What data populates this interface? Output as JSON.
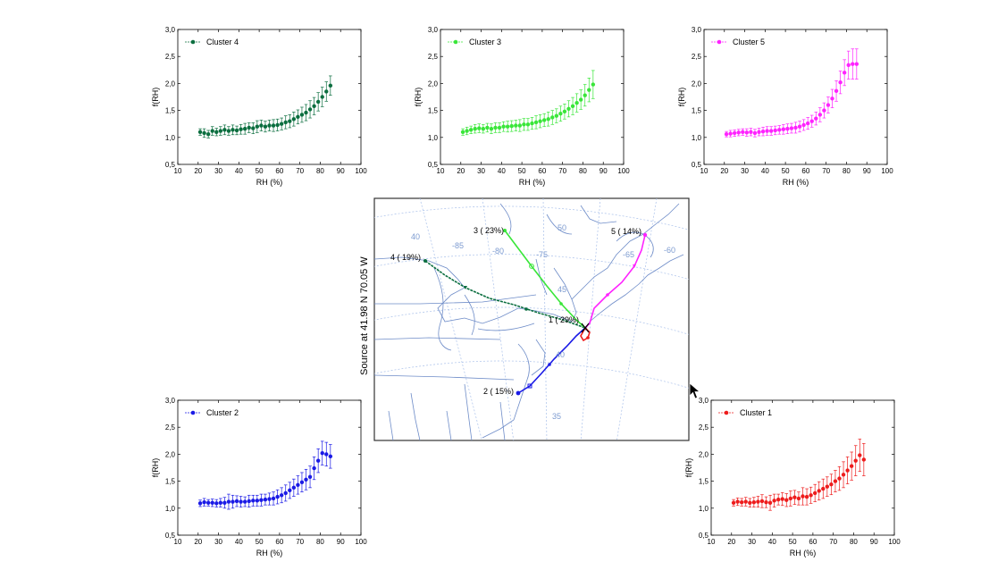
{
  "colors": {
    "cluster4": "#0b6e3f",
    "cluster3": "#39e639",
    "cluster5": "#ff22ff",
    "cluster2": "#1a1ae6",
    "cluster1": "#ee1c1c",
    "map_boundary": "#6e8cc8",
    "map_grid": "#a9c0ea",
    "cursor": "#000000"
  },
  "icons": {
    "cursor": "arrow-cursor-icon"
  },
  "axis_common": {
    "xlabel": "RH (%)",
    "ylabel": "f(RH)",
    "xlim": [
      10,
      100
    ],
    "ylim": [
      0.5,
      3.0
    ],
    "xticks": [
      "10",
      "20",
      "30",
      "40",
      "50",
      "60",
      "70",
      "80",
      "90",
      "100"
    ],
    "yticks": [
      "0,5",
      "1,0",
      "1,5",
      "2,0",
      "2,5",
      "3,0"
    ]
  },
  "chart_data": [
    {
      "type": "scatter",
      "legend": "Cluster 4",
      "color_key": "cluster4",
      "panel": "top-left",
      "xlabel": "RH (%)",
      "ylabel": "f(RH)",
      "xlim": [
        10,
        100
      ],
      "ylim": [
        0.5,
        3.0
      ],
      "x": [
        21,
        23,
        25,
        27,
        29,
        31,
        33,
        35,
        37,
        39,
        41,
        43,
        45,
        47,
        49,
        51,
        53,
        55,
        57,
        59,
        61,
        63,
        65,
        67,
        69,
        71,
        73,
        75,
        77,
        79,
        81,
        83,
        85
      ],
      "y": [
        1.1,
        1.08,
        1.06,
        1.12,
        1.1,
        1.12,
        1.14,
        1.12,
        1.14,
        1.13,
        1.15,
        1.16,
        1.18,
        1.17,
        1.2,
        1.22,
        1.2,
        1.22,
        1.22,
        1.23,
        1.25,
        1.28,
        1.3,
        1.34,
        1.38,
        1.42,
        1.46,
        1.52,
        1.58,
        1.66,
        1.75,
        1.85,
        1.96
      ],
      "err": [
        0.06,
        0.08,
        0.07,
        0.08,
        0.07,
        0.08,
        0.09,
        0.08,
        0.09,
        0.08,
        0.09,
        0.1,
        0.09,
        0.1,
        0.11,
        0.1,
        0.1,
        0.1,
        0.11,
        0.11,
        0.11,
        0.12,
        0.12,
        0.13,
        0.13,
        0.14,
        0.15,
        0.16,
        0.16,
        0.17,
        0.18,
        0.18,
        0.18
      ]
    },
    {
      "type": "scatter",
      "legend": "Cluster 3",
      "color_key": "cluster3",
      "panel": "top-center",
      "xlabel": "RH (%)",
      "ylabel": "f(RH)",
      "xlim": [
        10,
        100
      ],
      "ylim": [
        0.5,
        3.0
      ],
      "x": [
        21,
        23,
        25,
        27,
        29,
        31,
        33,
        35,
        37,
        39,
        41,
        43,
        45,
        47,
        49,
        51,
        53,
        55,
        57,
        59,
        61,
        63,
        65,
        67,
        69,
        71,
        73,
        75,
        77,
        79,
        81,
        83,
        85
      ],
      "y": [
        1.1,
        1.12,
        1.14,
        1.16,
        1.17,
        1.16,
        1.18,
        1.16,
        1.18,
        1.18,
        1.2,
        1.2,
        1.21,
        1.22,
        1.22,
        1.24,
        1.24,
        1.26,
        1.28,
        1.3,
        1.32,
        1.34,
        1.37,
        1.4,
        1.44,
        1.48,
        1.53,
        1.58,
        1.64,
        1.7,
        1.78,
        1.88,
        1.98
      ],
      "err": [
        0.06,
        0.07,
        0.07,
        0.08,
        0.08,
        0.08,
        0.08,
        0.09,
        0.09,
        0.09,
        0.09,
        0.1,
        0.1,
        0.1,
        0.11,
        0.11,
        0.11,
        0.11,
        0.12,
        0.12,
        0.12,
        0.13,
        0.13,
        0.13,
        0.14,
        0.14,
        0.15,
        0.16,
        0.17,
        0.18,
        0.2,
        0.22,
        0.26
      ]
    },
    {
      "type": "scatter",
      "legend": "Cluster 5",
      "color_key": "cluster5",
      "panel": "top-right",
      "xlabel": "RH (%)",
      "ylabel": "f(RH)",
      "xlim": [
        10,
        100
      ],
      "ylim": [
        0.5,
        3.0
      ],
      "x": [
        21,
        23,
        25,
        27,
        29,
        31,
        33,
        35,
        37,
        39,
        41,
        43,
        45,
        47,
        49,
        51,
        53,
        55,
        57,
        59,
        61,
        63,
        65,
        67,
        69,
        71,
        73,
        75,
        77,
        79,
        81,
        83,
        85
      ],
      "y": [
        1.06,
        1.07,
        1.08,
        1.09,
        1.1,
        1.09,
        1.1,
        1.08,
        1.1,
        1.11,
        1.12,
        1.12,
        1.13,
        1.14,
        1.15,
        1.16,
        1.17,
        1.18,
        1.2,
        1.23,
        1.26,
        1.3,
        1.35,
        1.42,
        1.5,
        1.6,
        1.72,
        1.86,
        2.02,
        2.2,
        2.34,
        2.36,
        2.36
      ],
      "err": [
        0.05,
        0.06,
        0.06,
        0.06,
        0.06,
        0.07,
        0.07,
        0.07,
        0.07,
        0.08,
        0.08,
        0.08,
        0.08,
        0.08,
        0.09,
        0.09,
        0.09,
        0.1,
        0.1,
        0.1,
        0.11,
        0.11,
        0.12,
        0.13,
        0.14,
        0.15,
        0.17,
        0.19,
        0.21,
        0.24,
        0.26,
        0.28,
        0.28
      ]
    },
    {
      "type": "scatter",
      "legend": "Cluster 2",
      "color_key": "cluster2",
      "panel": "bottom-left",
      "xlabel": "RH (%)",
      "ylabel": "f(RH)",
      "xlim": [
        10,
        100
      ],
      "ylim": [
        0.5,
        3.0
      ],
      "x": [
        21,
        23,
        25,
        27,
        29,
        31,
        33,
        35,
        37,
        39,
        41,
        43,
        45,
        47,
        49,
        51,
        53,
        55,
        57,
        59,
        61,
        63,
        65,
        67,
        69,
        71,
        73,
        75,
        77,
        79,
        81,
        83,
        85
      ],
      "y": [
        1.09,
        1.11,
        1.1,
        1.1,
        1.09,
        1.1,
        1.1,
        1.12,
        1.12,
        1.13,
        1.12,
        1.12,
        1.13,
        1.14,
        1.14,
        1.15,
        1.16,
        1.17,
        1.18,
        1.21,
        1.24,
        1.28,
        1.33,
        1.38,
        1.43,
        1.48,
        1.53,
        1.58,
        1.74,
        1.88,
        2.02,
        2.0,
        1.96
      ],
      "err": [
        0.06,
        0.07,
        0.06,
        0.07,
        0.07,
        0.08,
        0.1,
        0.14,
        0.12,
        0.1,
        0.1,
        0.09,
        0.11,
        0.1,
        0.1,
        0.11,
        0.1,
        0.11,
        0.12,
        0.13,
        0.14,
        0.15,
        0.15,
        0.16,
        0.17,
        0.18,
        0.19,
        0.2,
        0.21,
        0.22,
        0.22,
        0.22,
        0.22
      ]
    },
    {
      "type": "scatter",
      "legend": "Cluster 1",
      "color_key": "cluster1",
      "panel": "bottom-right",
      "xlabel": "RH (%)",
      "ylabel": "f(RH)",
      "xlim": [
        10,
        100
      ],
      "ylim": [
        0.5,
        3.0
      ],
      "x": [
        21,
        23,
        25,
        27,
        29,
        31,
        33,
        35,
        37,
        39,
        41,
        43,
        45,
        47,
        49,
        51,
        53,
        55,
        57,
        59,
        61,
        63,
        65,
        67,
        69,
        71,
        73,
        75,
        77,
        79,
        81,
        83,
        85
      ],
      "y": [
        1.1,
        1.12,
        1.11,
        1.12,
        1.1,
        1.11,
        1.12,
        1.13,
        1.11,
        1.1,
        1.14,
        1.16,
        1.17,
        1.15,
        1.18,
        1.2,
        1.18,
        1.22,
        1.21,
        1.24,
        1.28,
        1.32,
        1.36,
        1.4,
        1.44,
        1.5,
        1.55,
        1.62,
        1.7,
        1.78,
        1.88,
        1.98,
        1.9
      ],
      "err": [
        0.06,
        0.07,
        0.07,
        0.08,
        0.08,
        0.09,
        0.1,
        0.12,
        0.1,
        0.14,
        0.12,
        0.1,
        0.12,
        0.12,
        0.14,
        0.13,
        0.12,
        0.16,
        0.15,
        0.15,
        0.16,
        0.17,
        0.18,
        0.18,
        0.19,
        0.2,
        0.22,
        0.24,
        0.25,
        0.26,
        0.28,
        0.3,
        0.3
      ]
    }
  ],
  "map": {
    "source_label": "Source    at    41.98 N    70.05 W",
    "grid_labels": [
      "50",
      "-80",
      "-75",
      "-65",
      "-60",
      "-85",
      "45",
      "40",
      "35",
      "40"
    ],
    "trajectories": [
      {
        "label": "1 ( 29%)",
        "color_key": "cluster1"
      },
      {
        "label": "2 ( 15%)",
        "color_key": "cluster2"
      },
      {
        "label": "3 ( 23%)",
        "color_key": "cluster3"
      },
      {
        "label": "4 ( 19%)",
        "color_key": "cluster4"
      },
      {
        "label": "5 ( 14%)",
        "color_key": "cluster5"
      }
    ]
  }
}
